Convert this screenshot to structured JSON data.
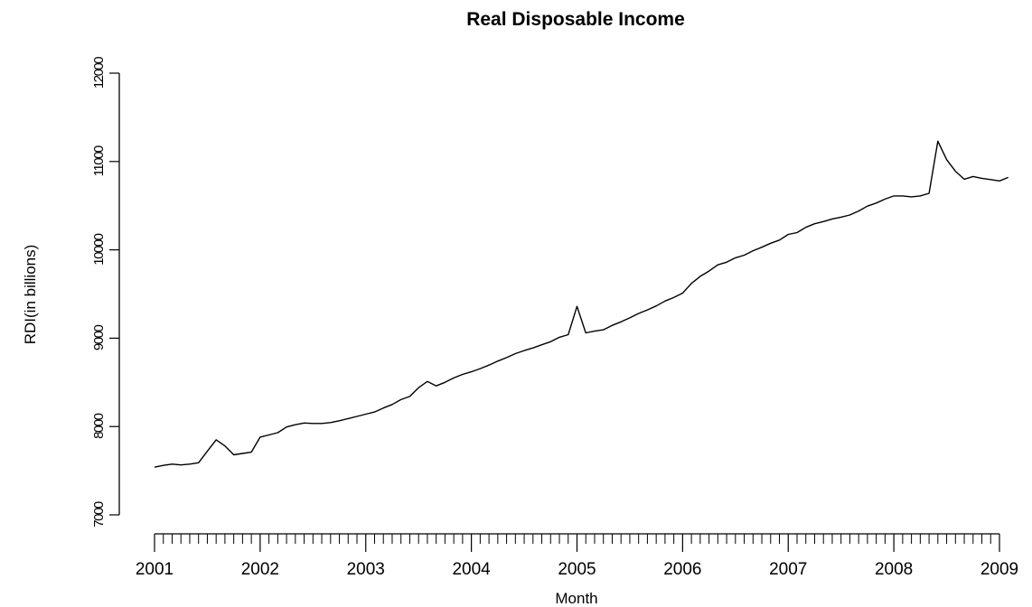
{
  "chart_data": {
    "type": "line",
    "title": "Real Disposable Income",
    "xlabel": "Month",
    "ylabel": "RDI(in billions)",
    "x_start": "2001-01",
    "x_frequency": "monthly",
    "xlim": [
      2001,
      2009
    ],
    "ylim": [
      7000,
      12000
    ],
    "yticks": [
      "7000",
      "8000",
      "9000",
      "10000",
      "11000",
      "12000"
    ],
    "xticks": [
      "2001",
      "2002",
      "2003",
      "2004",
      "2005",
      "2006",
      "2007",
      "2008",
      "2009"
    ],
    "grid": false,
    "series": [
      {
        "values": [
          7540,
          7560,
          7575,
          7565,
          7575,
          7590,
          7720,
          7850,
          7780,
          7680,
          7695,
          7710,
          7880,
          7905,
          7930,
          7995,
          8020,
          8040,
          8035,
          8035,
          8045,
          8065,
          8090,
          8115,
          8140,
          8165,
          8210,
          8250,
          8305,
          8340,
          8440,
          8510,
          8460,
          8500,
          8550,
          8590,
          8620,
          8655,
          8695,
          8740,
          8780,
          8825,
          8860,
          8890,
          8925,
          8960,
          9010,
          9040,
          9360,
          9060,
          9080,
          9095,
          9145,
          9185,
          9230,
          9280,
          9320,
          9365,
          9420,
          9460,
          9510,
          9620,
          9700,
          9760,
          9830,
          9860,
          9910,
          9940,
          9990,
          10030,
          10075,
          10110,
          10175,
          10195,
          10255,
          10295,
          10320,
          10350,
          10370,
          10395,
          10440,
          10495,
          10530,
          10575,
          10610,
          10610,
          10600,
          10610,
          10640,
          11230,
          11020,
          10890,
          10800,
          10830,
          10810,
          10795,
          10780,
          10820
        ]
      }
    ]
  }
}
